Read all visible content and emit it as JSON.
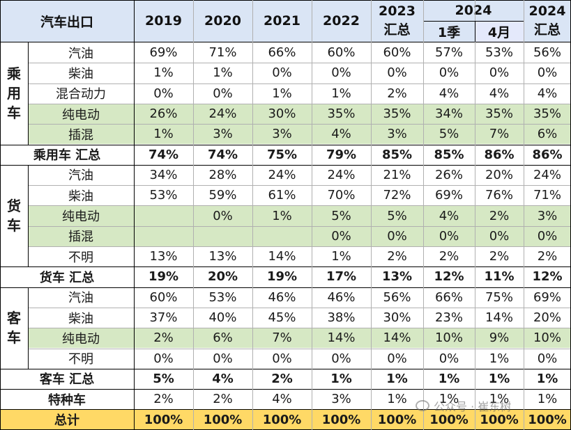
{
  "header": {
    "title": "汽车出口",
    "years": [
      "2019",
      "2020",
      "2021",
      "2022"
    ],
    "y2023": {
      "year": "2023",
      "sub": "汇总"
    },
    "y2024": {
      "year": "2024",
      "q1": "1季",
      "apr": "4月"
    },
    "y2024_total": {
      "year": "2024",
      "sub": "汇总"
    }
  },
  "groups": {
    "passenger": [
      "乘",
      "用",
      "车"
    ],
    "truck": [
      "货",
      "车"
    ],
    "bus": [
      "客",
      "车"
    ]
  },
  "rows": [
    {
      "label": "汽油",
      "values": [
        "69%",
        "71%",
        "66%",
        "60%",
        "60%",
        "57%",
        "53%",
        "56%"
      ],
      "style": "normal"
    },
    {
      "label": "柴油",
      "values": [
        "1%",
        "1%",
        "0%",
        "0%",
        "0%",
        "0%",
        "0%",
        "0%"
      ],
      "style": "normal"
    },
    {
      "label": "混合动力",
      "values": [
        "0%",
        "0%",
        "1%",
        "1%",
        "2%",
        "4%",
        "4%",
        "4%"
      ],
      "style": "normal"
    },
    {
      "label": "纯电动",
      "values": [
        "26%",
        "24%",
        "30%",
        "35%",
        "35%",
        "34%",
        "35%",
        "35%"
      ],
      "style": "green"
    },
    {
      "label": "插混",
      "values": [
        "1%",
        "3%",
        "3%",
        "4%",
        "3%",
        "5%",
        "7%",
        "6%"
      ],
      "style": "green"
    },
    {
      "label": "乘用车 汇总",
      "values": [
        "74%",
        "74%",
        "75%",
        "79%",
        "85%",
        "85%",
        "86%",
        "86%"
      ],
      "style": "total"
    },
    {
      "label": "汽油",
      "values": [
        "34%",
        "28%",
        "24%",
        "24%",
        "21%",
        "26%",
        "20%",
        "24%"
      ],
      "style": "normal"
    },
    {
      "label": "柴油",
      "values": [
        "53%",
        "59%",
        "61%",
        "70%",
        "72%",
        "69%",
        "76%",
        "71%"
      ],
      "style": "normal"
    },
    {
      "label": "纯电动",
      "values": [
        "",
        "0%",
        "1%",
        "5%",
        "5%",
        "4%",
        "2%",
        "3%"
      ],
      "style": "green"
    },
    {
      "label": "插混",
      "values": [
        "",
        "",
        "",
        "0%",
        "0%",
        "0%",
        "0%",
        "0%"
      ],
      "style": "green"
    },
    {
      "label": "不明",
      "values": [
        "13%",
        "13%",
        "14%",
        "1%",
        "2%",
        "2%",
        "2%",
        "2%"
      ],
      "style": "normal"
    },
    {
      "label": "货车 汇总",
      "values": [
        "19%",
        "20%",
        "19%",
        "17%",
        "13%",
        "12%",
        "11%",
        "12%"
      ],
      "style": "total"
    },
    {
      "label": "汽油",
      "values": [
        "60%",
        "53%",
        "46%",
        "46%",
        "56%",
        "66%",
        "75%",
        "69%"
      ],
      "style": "normal"
    },
    {
      "label": "柴油",
      "values": [
        "37%",
        "40%",
        "45%",
        "38%",
        "30%",
        "23%",
        "14%",
        "20%"
      ],
      "style": "normal"
    },
    {
      "label": "纯电动",
      "values": [
        "2%",
        "6%",
        "7%",
        "14%",
        "14%",
        "10%",
        "9%",
        "10%"
      ],
      "style": "green"
    },
    {
      "label": "不明",
      "values": [
        "0%",
        "0%",
        "0%",
        "0%",
        "0%",
        "0%",
        "1%",
        "0%"
      ],
      "style": "normal"
    },
    {
      "label": "客车 汇总",
      "values": [
        "5%",
        "4%",
        "2%",
        "1%",
        "1%",
        "1%",
        "1%",
        "1%"
      ],
      "style": "total"
    },
    {
      "label": "特种车",
      "values": [
        "2%",
        "2%",
        "4%",
        "3%",
        "1%",
        "1%",
        "1%",
        "1%"
      ],
      "style": "special"
    },
    {
      "label": "总计",
      "values": [
        "100%",
        "100%",
        "100%",
        "100%",
        "100%",
        "100%",
        "100%",
        "100%"
      ],
      "style": "grand"
    }
  ],
  "watermark": {
    "text": "公众号 · 崔东树"
  },
  "colors": {
    "header_bg": "#dae5f5",
    "green_bg": "#d6e8c4",
    "total_bg": "#ffd966"
  }
}
